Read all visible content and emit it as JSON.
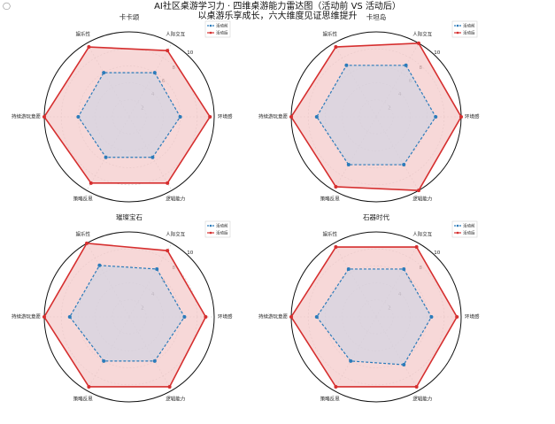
{
  "page": {
    "corner_mark": "◯",
    "title": "AI社区桌游学习力 · 四维桌游能力雷达图（活动前 VS 活动后）",
    "subtitle": "以桌游乐享成长，六大维度见证思维提升"
  },
  "colors": {
    "before": "#2b7bba",
    "after": "#d62f2f",
    "after_fill": "#f4c7c7",
    "before_fill": "#c9d3e6",
    "grid": "#cccccc",
    "frame": "#111111"
  },
  "chart_data": [
    {
      "type": "radar",
      "title": "卡卡颂",
      "axes": [
        "人际交互",
        "环境感",
        "逻辑能力",
        "策略反思",
        "持续游玩意愿",
        "娱乐性"
      ],
      "radial_ticks": [
        2,
        4,
        6,
        8,
        10
      ],
      "rlim": [
        0,
        10
      ],
      "legend": {
        "placement": "top-right",
        "entries": [
          "活动前",
          "活动后"
        ]
      },
      "series": [
        {
          "name": "活动前",
          "style": "dashed",
          "values": [
            6.0,
            6.0,
            5.5,
            5.5,
            6.0,
            6.0
          ]
        },
        {
          "name": "活动后",
          "style": "solid",
          "values": [
            9.0,
            9.5,
            9.0,
            9.0,
            10.0,
            9.5
          ]
        }
      ]
    },
    {
      "type": "radar",
      "title": "卡坦岛",
      "axes": [
        "人际交互",
        "环境感",
        "逻辑能力",
        "策略反思",
        "持续游玩意愿",
        "娱乐性"
      ],
      "radial_ticks": [
        2,
        4,
        6,
        8,
        10
      ],
      "rlim": [
        0,
        10
      ],
      "legend": {
        "placement": "top-right",
        "entries": [
          "活动前",
          "活动后"
        ]
      },
      "series": [
        {
          "name": "活动前",
          "style": "dashed",
          "values": [
            7.0,
            7.0,
            6.5,
            6.5,
            7.0,
            7.0
          ]
        },
        {
          "name": "活动后",
          "style": "solid",
          "values": [
            10.0,
            10.0,
            10.0,
            9.5,
            10.0,
            9.5
          ]
        }
      ]
    },
    {
      "type": "radar",
      "title": "璀璨宝石",
      "axes": [
        "人际交互",
        "环境感",
        "逻辑能力",
        "策略反思",
        "持续游玩意愿",
        "娱乐性"
      ],
      "radial_ticks": [
        2,
        4,
        6,
        8,
        10
      ],
      "rlim": [
        0,
        10
      ],
      "legend": {
        "placement": "top-right",
        "entries": [
          "活动前",
          "活动后"
        ]
      },
      "series": [
        {
          "name": "活动前",
          "style": "dashed",
          "values": [
            6.5,
            6.5,
            6.0,
            6.0,
            7.0,
            7.0
          ]
        },
        {
          "name": "活动后",
          "style": "solid",
          "values": [
            9.0,
            9.0,
            9.5,
            9.5,
            10.0,
            10.0
          ]
        }
      ]
    },
    {
      "type": "radar",
      "title": "石器时代",
      "axes": [
        "人际交互",
        "环境感",
        "逻辑能力",
        "策略反思",
        "持续游玩意愿",
        "娱乐性"
      ],
      "radial_ticks": [
        2,
        4,
        6,
        8,
        10
      ],
      "rlim": [
        0,
        10
      ],
      "legend": {
        "placement": "top-right",
        "entries": [
          "活动前",
          "活动后"
        ]
      },
      "series": [
        {
          "name": "活动前",
          "style": "dashed",
          "values": [
            6.5,
            6.5,
            6.5,
            6.0,
            7.0,
            6.5
          ]
        },
        {
          "name": "活动后",
          "style": "solid",
          "values": [
            9.5,
            9.5,
            9.5,
            9.5,
            10.0,
            9.5
          ]
        }
      ]
    }
  ]
}
